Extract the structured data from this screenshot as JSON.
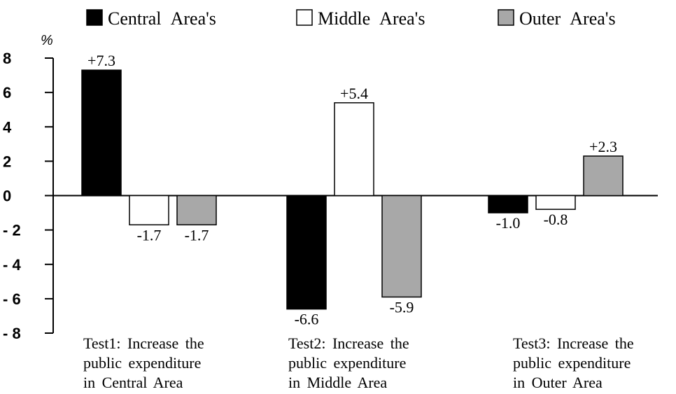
{
  "chart_data": {
    "type": "bar",
    "y_unit": "%",
    "categories": [
      "Test1: Increase the\npublic expenditure\nin Central Area",
      "Test2: Increase the\npublic expenditure\nin Middle Area",
      "Test3: Increase the\npublic expenditure\nin Outer Area"
    ],
    "series": [
      {
        "name": "Central Area's",
        "color": "#000000",
        "values": [
          7.3,
          -6.6,
          -1.0
        ],
        "value_labels": [
          "+7.3",
          "-6.6",
          "-1.0"
        ]
      },
      {
        "name": "Middle Area's",
        "color": "#ffffff",
        "values": [
          -1.7,
          5.4,
          -0.8
        ],
        "value_labels": [
          "-1.7",
          "+5.4",
          "-0.8"
        ]
      },
      {
        "name": "Outer Area's",
        "color": "#a8a8a8",
        "values": [
          -1.7,
          -5.9,
          2.3
        ],
        "value_labels": [
          "-1.7",
          "-5.9",
          "+2.3"
        ]
      }
    ],
    "ylim": [
      -8,
      8
    ],
    "yticks": [
      {
        "value": -8,
        "label": "- 8"
      },
      {
        "value": -6,
        "label": "- 6"
      },
      {
        "value": -4,
        "label": "- 4"
      },
      {
        "value": -2,
        "label": "- 2"
      },
      0,
      2,
      4,
      6,
      8
    ],
    "legend": "top"
  }
}
